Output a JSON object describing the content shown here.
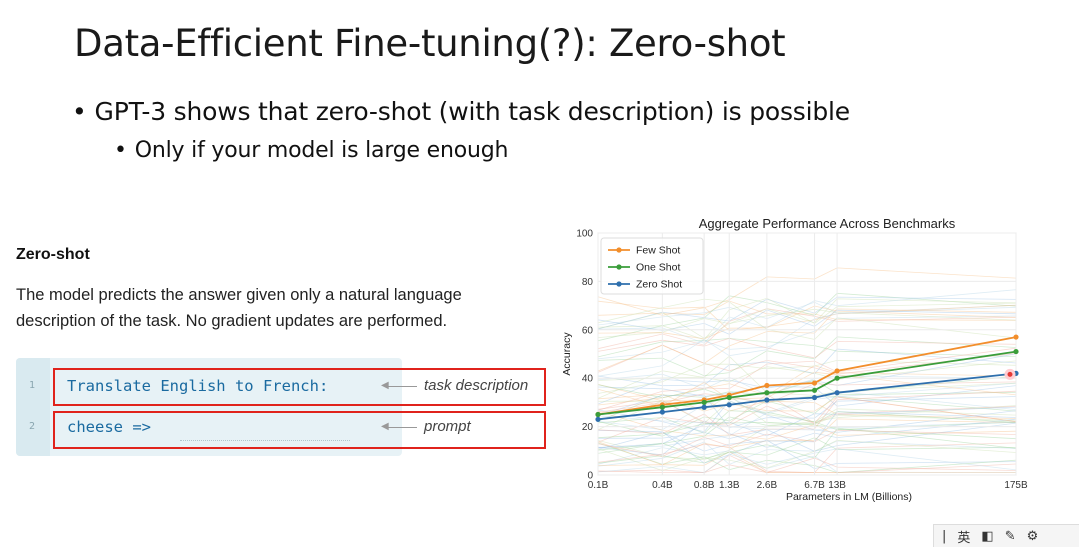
{
  "slide": {
    "title": "Data-Efficient Fine-tuning(?): Zero-shot",
    "bullets": [
      "GPT-3 shows that zero-shot (with task description) is possible",
      "Only if your model is large enough"
    ],
    "bullet_glyph": "•"
  },
  "zero_shot": {
    "heading": "Zero-shot",
    "description": "The model predicts the answer given only a natural language description of the task. No gradient updates are performed.",
    "lines": [
      {
        "number": "1",
        "code": "Translate English to French:",
        "annotation": "task description"
      },
      {
        "number": "2",
        "code": "cheese =>",
        "annotation": "prompt"
      }
    ],
    "highlight_color": "#e0231c"
  },
  "chart_data": {
    "type": "line",
    "title": "Aggregate Performance Across Benchmarks",
    "xlabel": "Parameters in LM (Billions)",
    "ylabel": "Accuracy",
    "x": [
      "0.1B",
      "0.4B",
      "0.8B",
      "1.3B",
      "2.6B",
      "6.7B",
      "13B",
      "175B"
    ],
    "x_scale": "log",
    "ylim": [
      0,
      100
    ],
    "yticks": [
      "0",
      "20",
      "40",
      "60",
      "80",
      "100"
    ],
    "legend_position": "top-left",
    "grid": true,
    "series": [
      {
        "name": "Few Shot",
        "color": "#f28e2b",
        "values": [
          25,
          29,
          31,
          33,
          37,
          38,
          43,
          57
        ]
      },
      {
        "name": "One Shot",
        "color": "#3a9d3a",
        "values": [
          25,
          28,
          30,
          32,
          34,
          35,
          40,
          51
        ]
      },
      {
        "name": "Zero Shot",
        "color": "#2e6fad",
        "values": [
          23,
          26,
          28,
          29,
          31,
          32,
          34,
          42
        ]
      }
    ]
  },
  "toolbar": {
    "items": [
      {
        "icon": "cursor-icon",
        "glyph": "|"
      },
      {
        "icon": "language-icon",
        "glyph": "英"
      },
      {
        "icon": "half-square-icon",
        "glyph": "◧"
      },
      {
        "icon": "pen-icon",
        "glyph": "✎"
      },
      {
        "icon": "gear-icon",
        "glyph": "⚙"
      }
    ]
  }
}
